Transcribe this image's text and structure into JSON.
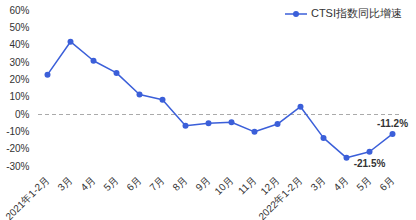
{
  "chart_data": {
    "type": "line",
    "categories": [
      "2021年1-2月",
      "3月",
      "4月",
      "5月",
      "6月",
      "7月",
      "8月",
      "9月",
      "10月",
      "11月",
      "12月",
      "2022年1-2月",
      "3月",
      "4月",
      "5月",
      "6月"
    ],
    "series": [
      {
        "name": "CTSI指数同比增速",
        "color": "#3b5fd9",
        "marker": "circle",
        "values": [
          23,
          42,
          31,
          24,
          11.5,
          8.5,
          -6.5,
          -5,
          -4.5,
          -10,
          -5.5,
          4.5,
          -13.5,
          -25,
          -21.5,
          -11.2
        ],
        "value_labels": [
          null,
          null,
          null,
          null,
          null,
          null,
          null,
          null,
          null,
          null,
          null,
          null,
          null,
          null,
          "-21.5%",
          "-11.2%"
        ]
      }
    ],
    "ylim": [
      -30,
      60
    ],
    "yticks": [
      {
        "value": -30,
        "label": "-30%"
      },
      {
        "value": -20,
        "label": "-20%"
      },
      {
        "value": -10,
        "label": "-10%"
      },
      {
        "value": 0,
        "label": "0%"
      },
      {
        "value": 10,
        "label": "10%"
      },
      {
        "value": 20,
        "label": "20%"
      },
      {
        "value": 30,
        "label": "30%"
      },
      {
        "value": 40,
        "label": "40%"
      },
      {
        "value": 50,
        "label": "50%"
      },
      {
        "value": 60,
        "label": "60%"
      }
    ],
    "legend": "top-right",
    "data_labels": true,
    "grid": false
  }
}
